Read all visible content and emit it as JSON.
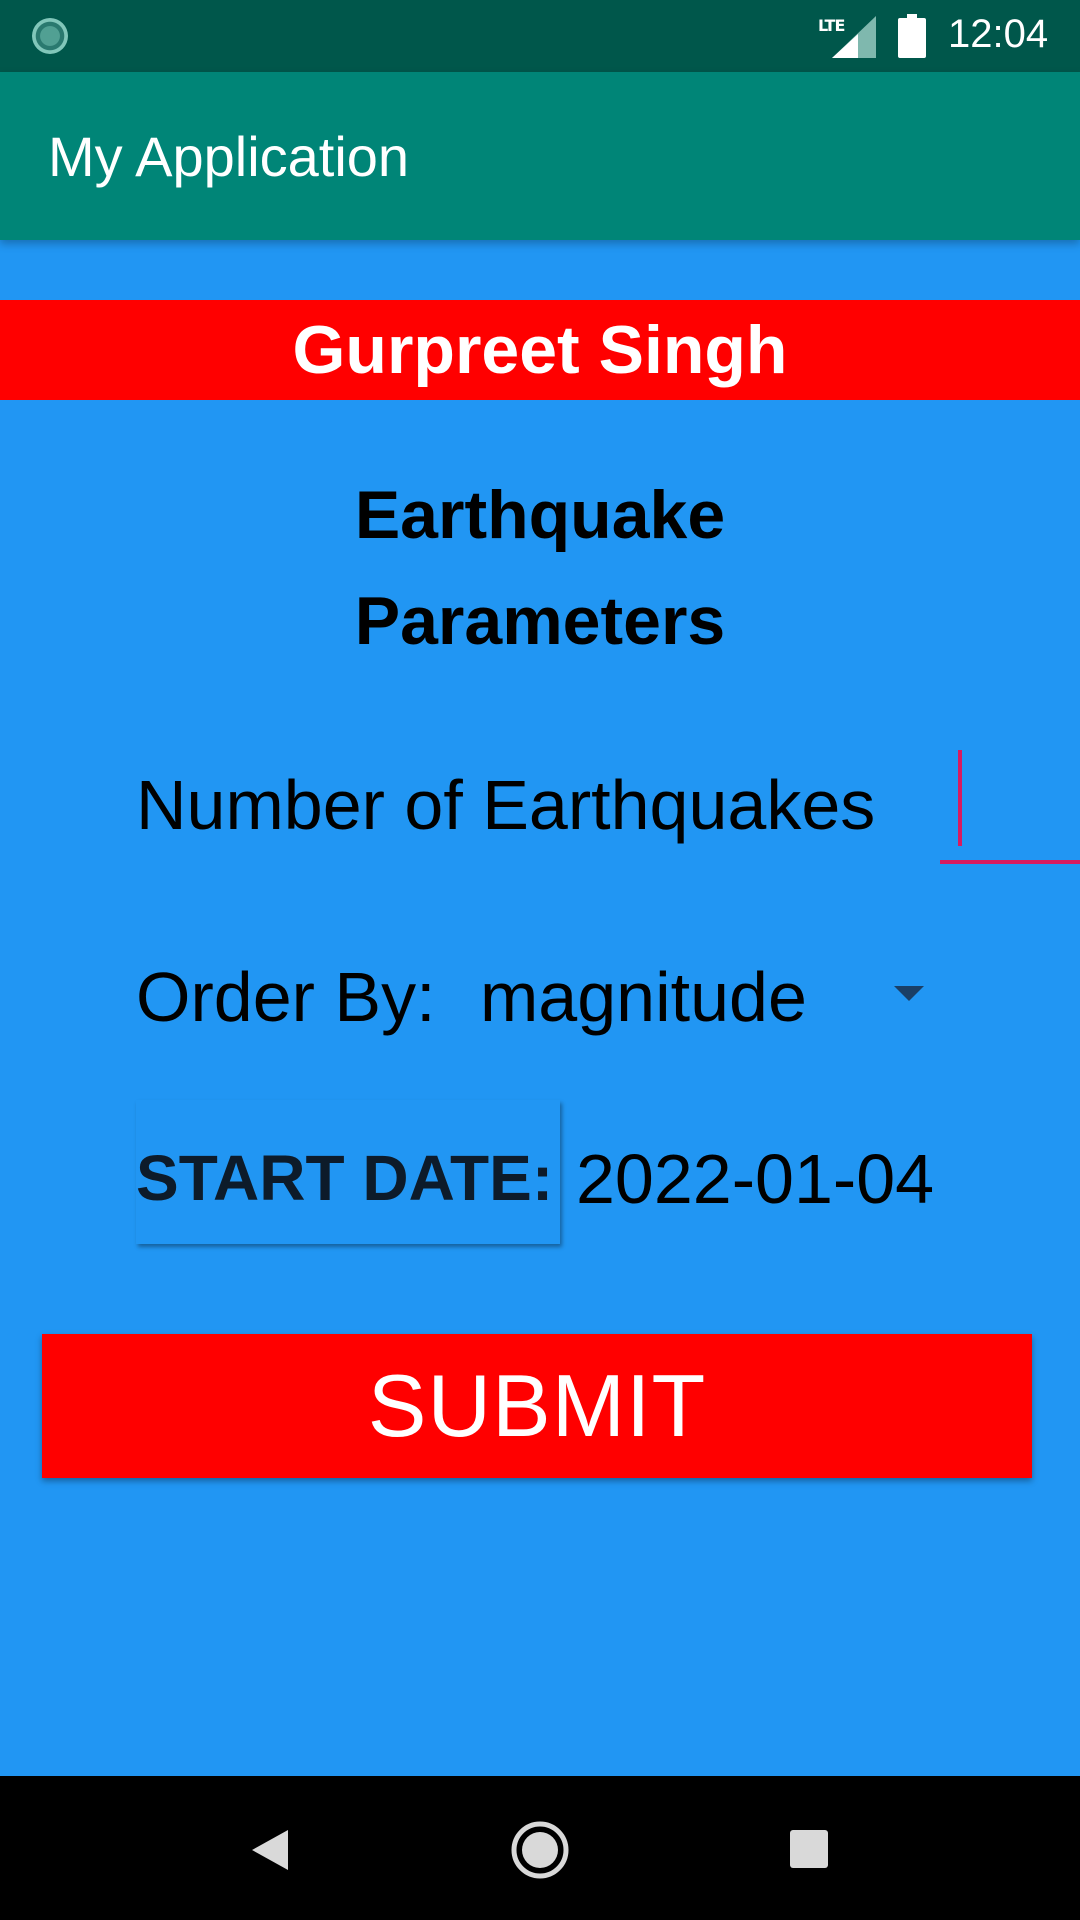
{
  "status_bar": {
    "network_label": "LTE",
    "time": "12:04"
  },
  "app_bar": {
    "title": "My Application"
  },
  "banner": {
    "name": "Gurpreet Singh"
  },
  "heading": {
    "line1": "Earthquake",
    "line2": "Parameters"
  },
  "form": {
    "num_earthquakes_placeholder": "Number of Earthquakes",
    "order_by_label": "Order By:",
    "order_by_value": "magnitude",
    "start_date_label": "START DATE:",
    "start_date_value": "2022-01-04",
    "submit_label": "SUBMIT"
  },
  "colors": {
    "background": "#2196F3",
    "status_bar": "#00574B",
    "app_bar": "#008577",
    "banner": "#FF0000",
    "submit": "#FF0000",
    "accent": "#D81B60"
  },
  "icons": {
    "status_left": "sync-icon",
    "signal": "signal-icon",
    "battery": "battery-icon",
    "nav_back": "back-icon",
    "nav_home": "home-icon",
    "nav_recents": "recents-icon"
  }
}
